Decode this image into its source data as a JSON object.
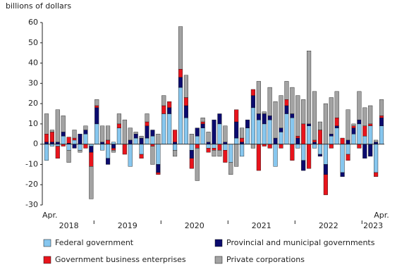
{
  "chart_data": {
    "type": "bar",
    "stacked": true,
    "y_axis_label": "billions of dollars",
    "categories": [
      "Apr.",
      null,
      null,
      null,
      null,
      null,
      null,
      null,
      null,
      null,
      null,
      null,
      null,
      null,
      null,
      null,
      null,
      null,
      null,
      null,
      null,
      null,
      null,
      null,
      null,
      null,
      null,
      null,
      null,
      null,
      null,
      null,
      null,
      null,
      null,
      null,
      null,
      null,
      null,
      null,
      null,
      null,
      null,
      null,
      null,
      null,
      null,
      null,
      null,
      null,
      null,
      null,
      null,
      null,
      null,
      null,
      null,
      null,
      null,
      null,
      "Apr."
    ],
    "years": [
      "2018",
      "2019",
      "2020",
      "2021",
      "2022",
      "2023"
    ],
    "ylim": [
      -30,
      60
    ],
    "yticks": [
      -30,
      -20,
      -10,
      0,
      10,
      20,
      30,
      40,
      50,
      60
    ],
    "series": [
      {
        "name": "Federal government",
        "color": "#87c7ef",
        "values": [
          -8,
          -1,
          -1,
          4,
          -3,
          2,
          -3,
          5,
          -1,
          10,
          -3,
          -7,
          1,
          8,
          0,
          -11,
          3,
          -5,
          3,
          4,
          -10,
          15,
          15,
          -3,
          28,
          13,
          -3,
          4,
          8,
          -2,
          -2,
          10,
          -3,
          -9,
          3,
          -6,
          8,
          18,
          12,
          10,
          12,
          -11,
          6,
          15,
          13,
          -2,
          -8,
          9,
          -2,
          -5,
          -10,
          4,
          8,
          -14,
          -5,
          5,
          10,
          4,
          9,
          -14,
          9
        ]
      },
      {
        "name": "Provincial and municipal governments",
        "color": "#0b0b6e",
        "values": [
          1,
          1,
          1,
          2,
          0.5,
          -2,
          5,
          2,
          -3,
          8,
          1,
          -3,
          -2,
          0,
          0,
          2,
          2,
          3,
          6,
          3,
          -4,
          0,
          3,
          1,
          5,
          6,
          -4,
          4,
          2,
          1,
          12,
          5,
          1,
          0,
          8,
          1,
          4,
          6,
          3,
          5,
          2,
          3,
          2,
          4,
          2,
          3,
          -5,
          1,
          1,
          -1,
          -5,
          1,
          1,
          -2,
          2,
          3,
          2,
          -7,
          -6,
          1,
          4
        ]
      },
      {
        "name": "Government business enterprises",
        "color": "#e8141c",
        "values": [
          4,
          5,
          -6,
          -1,
          3,
          1,
          0,
          -2,
          -7,
          1,
          0,
          2,
          -1,
          2,
          -5,
          0,
          0,
          -2,
          2,
          -1,
          -1,
          4,
          3,
          6,
          4,
          4,
          -5,
          -2,
          1,
          -2,
          -1,
          -3,
          -6,
          0,
          6,
          2,
          0,
          3,
          -13,
          -1,
          -2,
          0,
          -2,
          3,
          -8,
          1,
          10,
          -12,
          1,
          7,
          -10,
          -2,
          4,
          3,
          -3,
          1,
          -2,
          5,
          1,
          -2,
          1
        ]
      },
      {
        "name": "Private corporations",
        "color": "#a3a3a3",
        "values": [
          10,
          1,
          16,
          8,
          -6,
          4,
          -1,
          2,
          -16,
          3,
          8,
          7,
          -1,
          5,
          12,
          6,
          1,
          1,
          4,
          -9,
          5,
          5,
          0,
          -3,
          21,
          11,
          5,
          -16,
          2,
          5,
          -3,
          -3,
          8,
          -6,
          -11,
          5,
          0,
          -2,
          16,
          1,
          14,
          18,
          16,
          9,
          13,
          20,
          12,
          36,
          24,
          4,
          20,
          18,
          13,
          0,
          15,
          1,
          14,
          9,
          9,
          1,
          8
        ]
      }
    ]
  }
}
